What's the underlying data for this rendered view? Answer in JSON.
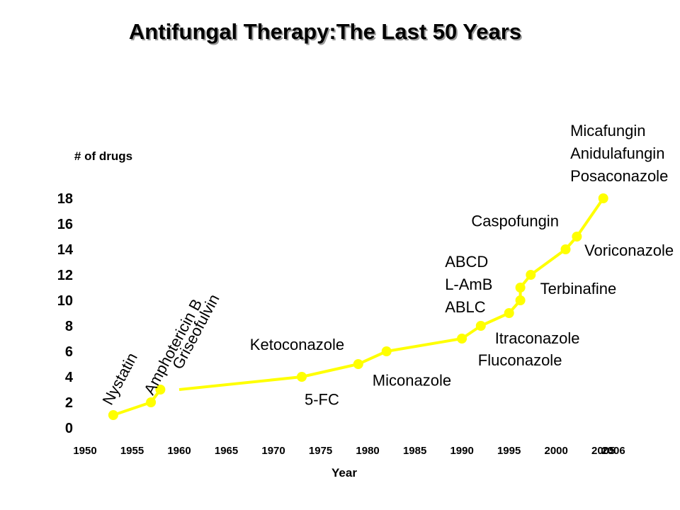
{
  "chart_data": {
    "type": "line",
    "title": "Antifungal Therapy:The Last 50 Years",
    "xlabel": "Year",
    "ylabel": "# of drugs",
    "yticks": [
      "0",
      "2",
      "4",
      "6",
      "8",
      "10",
      "12",
      "14",
      "16",
      "18"
    ],
    "xticks": [
      "1950",
      "1955",
      "1960",
      "1965",
      "1970",
      "1975",
      "1980",
      "1985",
      "1990",
      "1995",
      "2000",
      "2005",
      "2006"
    ],
    "xlim": [
      1950,
      2006
    ],
    "ylim": [
      0,
      18
    ],
    "grid": false,
    "legend": "none",
    "series": [
      {
        "color": "#ffff00",
        "segments": [
          [
            [
              1953,
              1
            ],
            [
              1957,
              2
            ],
            [
              1958,
              3
            ]
          ],
          [
            [
              1960,
              3
            ],
            [
              1973,
              4
            ],
            [
              1979,
              5
            ],
            [
              1982,
              6
            ],
            [
              1990,
              7
            ],
            [
              1992,
              8
            ],
            [
              1995,
              9
            ],
            [
              1996.2,
              10
            ],
            [
              1996.2,
              11
            ],
            [
              1997.3,
              12
            ],
            [
              2001,
              14
            ],
            [
              2002.2,
              15
            ],
            [
              2005,
              18
            ]
          ]
        ]
      }
    ],
    "markers": [
      [
        1953,
        1
      ],
      [
        1957,
        2
      ],
      [
        1958,
        3
      ],
      [
        1973,
        4
      ],
      [
        1979,
        5
      ],
      [
        1982,
        6
      ],
      [
        1990,
        7
      ],
      [
        1992,
        8
      ],
      [
        1995,
        9
      ],
      [
        1996.2,
        10
      ],
      [
        1996.2,
        11
      ],
      [
        1997.3,
        12
      ],
      [
        2001,
        14
      ],
      [
        2002.2,
        15
      ],
      [
        2005,
        18
      ]
    ],
    "annotations": [
      {
        "lines": [
          "Nystatin"
        ],
        "x": 1952.8,
        "y": 1.7,
        "rotate": -62
      },
      {
        "lines": [
          "Amphotericin B"
        ],
        "x": 1957.2,
        "y": 2.5,
        "rotate": -62
      },
      {
        "lines": [
          "Griseofulvin"
        ],
        "x": 1960.2,
        "y": 4.5,
        "rotate": -62
      },
      {
        "lines": [
          "Ketoconazole"
        ],
        "x": 1967.5,
        "y": 6.1,
        "rotate": 0
      },
      {
        "lines": [
          "5-FC"
        ],
        "x": 1973.3,
        "y": 1.8,
        "rotate": 0
      },
      {
        "lines": [
          "Miconazole"
        ],
        "x": 1980.5,
        "y": 3.3,
        "rotate": 0
      },
      {
        "lines": [
          "ABCD",
          "L-AmB",
          "ABLC"
        ],
        "x": 1988.2,
        "y": 12.6,
        "rotate": 0
      },
      {
        "lines": [
          "Itraconazole"
        ],
        "x": 1993.5,
        "y": 6.6,
        "rotate": 0
      },
      {
        "lines": [
          "Fluconazole"
        ],
        "x": 1991.7,
        "y": 4.9,
        "rotate": 0
      },
      {
        "lines": [
          "Terbinafine"
        ],
        "x": 1998.3,
        "y": 10.5,
        "rotate": 0
      },
      {
        "lines": [
          "Caspofungin"
        ],
        "x": 1991,
        "y": 15.8,
        "rotate": 0
      },
      {
        "lines": [
          "Voriconazole"
        ],
        "x": 2003,
        "y": 13.5,
        "rotate": 0
      },
      {
        "lines": [
          "Micafungin",
          "Anidulafungin",
          "Posaconazole"
        ],
        "x": 2001.5,
        "y": 22.9,
        "rotate": 0
      }
    ]
  }
}
